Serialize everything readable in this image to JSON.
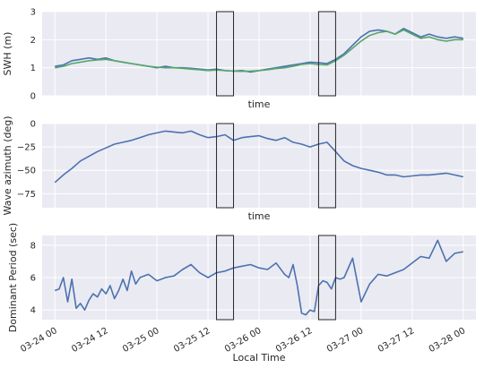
{
  "chart_data": [
    {
      "type": "line",
      "ylabel": "SWH (m)",
      "xlabel": "time",
      "ylim": [
        0,
        3
      ],
      "yticks": [
        0,
        1,
        2,
        3
      ],
      "ytick_labels": [
        "0",
        "1",
        "2",
        "3"
      ],
      "grid": true,
      "series": [
        {
          "color": "#4c72b0",
          "x": [
            0,
            2,
            4,
            6,
            8,
            10,
            12,
            14,
            16,
            18,
            20,
            22,
            24,
            26,
            28,
            30,
            32,
            34,
            36,
            38,
            40,
            42,
            44,
            46,
            48,
            50,
            52,
            54,
            56,
            58,
            60,
            62,
            64,
            66,
            68,
            70,
            72,
            74,
            76,
            78,
            80,
            82,
            84,
            86,
            88,
            90,
            92,
            94,
            96
          ],
          "y": [
            1.05,
            1.1,
            1.25,
            1.3,
            1.35,
            1.3,
            1.35,
            1.25,
            1.2,
            1.15,
            1.1,
            1.05,
            1.0,
            1.05,
            1.0,
            1.0,
            0.98,
            0.95,
            0.92,
            0.95,
            0.9,
            0.88,
            0.9,
            0.85,
            0.9,
            0.95,
            1.0,
            1.05,
            1.1,
            1.15,
            1.2,
            1.18,
            1.15,
            1.3,
            1.5,
            1.8,
            2.1,
            2.3,
            2.35,
            2.3,
            2.2,
            2.4,
            2.25,
            2.1,
            2.2,
            2.1,
            2.05,
            2.1,
            2.05
          ]
        },
        {
          "color": "#55a868",
          "x": [
            0,
            2,
            4,
            6,
            8,
            10,
            12,
            14,
            16,
            18,
            20,
            22,
            24,
            26,
            28,
            30,
            32,
            34,
            36,
            38,
            40,
            42,
            44,
            46,
            48,
            50,
            52,
            54,
            56,
            58,
            60,
            62,
            64,
            66,
            68,
            70,
            72,
            74,
            76,
            78,
            80,
            82,
            84,
            86,
            88,
            90,
            92,
            94,
            96
          ],
          "y": [
            1.0,
            1.05,
            1.15,
            1.2,
            1.25,
            1.28,
            1.3,
            1.25,
            1.2,
            1.15,
            1.1,
            1.05,
            1.02,
            1.0,
            1.0,
            0.98,
            0.95,
            0.93,
            0.9,
            0.92,
            0.9,
            0.88,
            0.87,
            0.88,
            0.9,
            0.93,
            0.97,
            1.0,
            1.05,
            1.12,
            1.15,
            1.12,
            1.1,
            1.25,
            1.45,
            1.7,
            1.95,
            2.15,
            2.25,
            2.3,
            2.2,
            2.35,
            2.2,
            2.05,
            2.1,
            2.0,
            1.95,
            2.0,
            2.0
          ]
        }
      ]
    },
    {
      "type": "line",
      "ylabel": "Wave azimuth (deg)",
      "xlabel": "time",
      "ylim": [
        -90,
        0
      ],
      "yticks": [
        0,
        -25,
        -50,
        -75
      ],
      "ytick_labels": [
        "0",
        "−25",
        "−50",
        "−75"
      ],
      "grid": true,
      "series": [
        {
          "color": "#4c72b0",
          "x": [
            0,
            2,
            4,
            6,
            8,
            10,
            12,
            14,
            16,
            18,
            20,
            22,
            24,
            26,
            28,
            30,
            32,
            34,
            36,
            38,
            40,
            42,
            44,
            46,
            48,
            50,
            52,
            54,
            56,
            58,
            60,
            62,
            64,
            66,
            68,
            70,
            72,
            74,
            76,
            78,
            80,
            82,
            84,
            86,
            88,
            90,
            92,
            94,
            96
          ],
          "y": [
            -63,
            -55,
            -48,
            -40,
            -35,
            -30,
            -26,
            -22,
            -20,
            -18,
            -15,
            -12,
            -10,
            -8,
            -9,
            -10,
            -8,
            -12,
            -15,
            -14,
            -12,
            -18,
            -15,
            -14,
            -13,
            -16,
            -18,
            -15,
            -20,
            -22,
            -25,
            -22,
            -20,
            -30,
            -40,
            -45,
            -48,
            -50,
            -52,
            -55,
            -55,
            -57,
            -56,
            -55,
            -55,
            -54,
            -53,
            -55,
            -57
          ]
        }
      ]
    },
    {
      "type": "line",
      "ylabel": "Dominant Period (sec)",
      "xlabel": "Local Time",
      "ylim": [
        3.4,
        8.6
      ],
      "yticks": [
        4,
        6,
        8
      ],
      "ytick_labels": [
        "4",
        "6",
        "8"
      ],
      "x_tick_positions": [
        0,
        12,
        24,
        36,
        48,
        60,
        72,
        84,
        96
      ],
      "x_tick_labels": [
        "03-24 00",
        "03-24 12",
        "03-25 00",
        "03-25 12",
        "03-26 00",
        "03-26 12",
        "03-27 00",
        "03-27 12",
        "03-28 00"
      ],
      "grid": true,
      "series": [
        {
          "color": "#4c72b0",
          "x": [
            0,
            1,
            2,
            3,
            4,
            5,
            6,
            7,
            8,
            9,
            10,
            11,
            12,
            13,
            14,
            15,
            16,
            17,
            18,
            19,
            20,
            22,
            24,
            26,
            28,
            30,
            32,
            34,
            36,
            38,
            40,
            42,
            44,
            46,
            48,
            50,
            52,
            54,
            55,
            56,
            57,
            58,
            59,
            60,
            61,
            62,
            63,
            64,
            65,
            66,
            67,
            68,
            70,
            72,
            74,
            76,
            78,
            80,
            82,
            84,
            86,
            88,
            90,
            92,
            94,
            96
          ],
          "y": [
            5.2,
            5.3,
            6.0,
            4.5,
            5.9,
            4.1,
            4.4,
            4.0,
            4.6,
            5.0,
            4.8,
            5.3,
            5.0,
            5.5,
            4.7,
            5.2,
            5.9,
            5.2,
            6.4,
            5.6,
            6.0,
            6.2,
            5.8,
            6.0,
            6.1,
            6.5,
            6.8,
            6.3,
            6.0,
            6.3,
            6.4,
            6.6,
            6.7,
            6.8,
            6.6,
            6.5,
            6.9,
            6.2,
            6.0,
            6.8,
            5.5,
            3.8,
            3.7,
            4.0,
            3.9,
            5.5,
            5.8,
            5.7,
            5.3,
            6.0,
            5.9,
            6.0,
            7.2,
            4.5,
            5.6,
            6.2,
            6.1,
            6.3,
            6.5,
            6.9,
            7.3,
            7.2,
            8.3,
            7.0,
            7.5,
            7.6
          ]
        }
      ]
    }
  ],
  "highlight_windows": [
    [
      38,
      42
    ],
    [
      62,
      66
    ]
  ]
}
